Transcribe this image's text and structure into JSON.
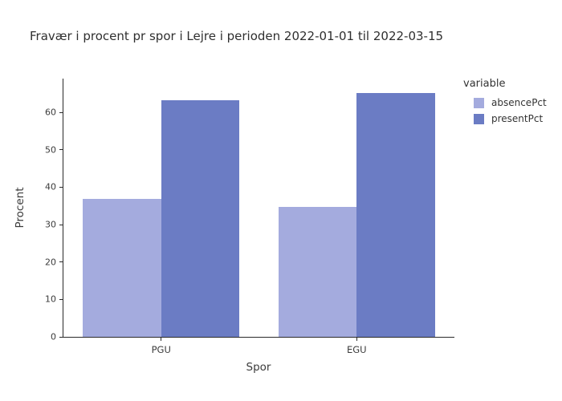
{
  "chart_data": {
    "type": "bar",
    "title": "Fravær i procent pr spor i Lejre i perioden 2022-01-01 til 2022-03-15",
    "xlabel": "Spor",
    "ylabel": "Procent",
    "categories": [
      "PGU",
      "EGU"
    ],
    "series": [
      {
        "name": "absencePct",
        "color": "#a4abde",
        "values": [
          36.8,
          34.8
        ]
      },
      {
        "name": "presentPct",
        "color": "#6b7cc4",
        "values": [
          63.2,
          65.2
        ]
      }
    ],
    "yticks": [
      0,
      10,
      20,
      30,
      40,
      50,
      60
    ],
    "ylim": [
      0,
      69
    ],
    "grid": false,
    "legend_title": "variable",
    "legend_position": "right"
  }
}
